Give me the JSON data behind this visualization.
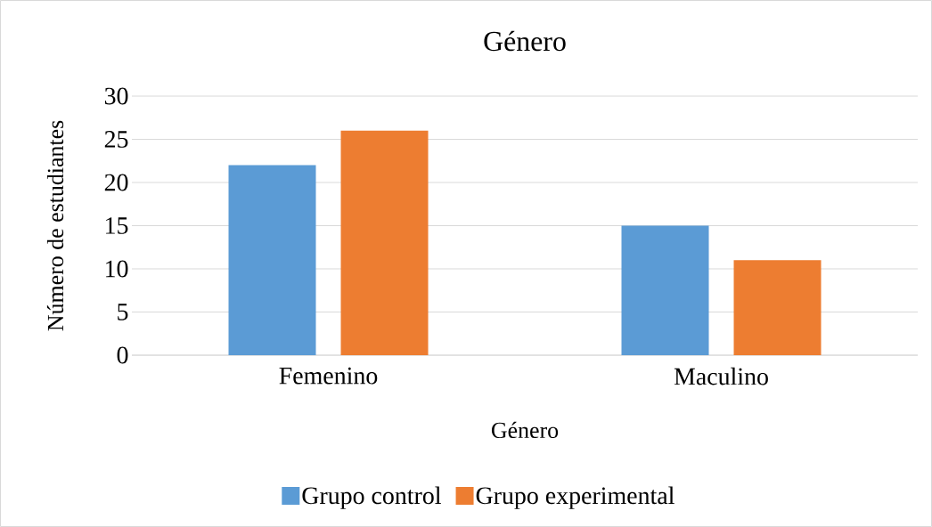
{
  "chart_data": {
    "type": "bar",
    "title": "Género",
    "xlabel": "Género",
    "ylabel": "Número de estudiantes",
    "categories": [
      "Femenino",
      "Maculino"
    ],
    "series": [
      {
        "name": "Grupo control",
        "color": "#5b9bd5",
        "values": [
          22,
          15
        ]
      },
      {
        "name": "Grupo experimental",
        "color": "#ed7d31",
        "values": [
          26,
          11
        ]
      }
    ],
    "ylim": [
      0,
      30
    ],
    "yticks": [
      0,
      5,
      10,
      15,
      20,
      25,
      30
    ],
    "grid": "y",
    "legend": "bottom"
  }
}
